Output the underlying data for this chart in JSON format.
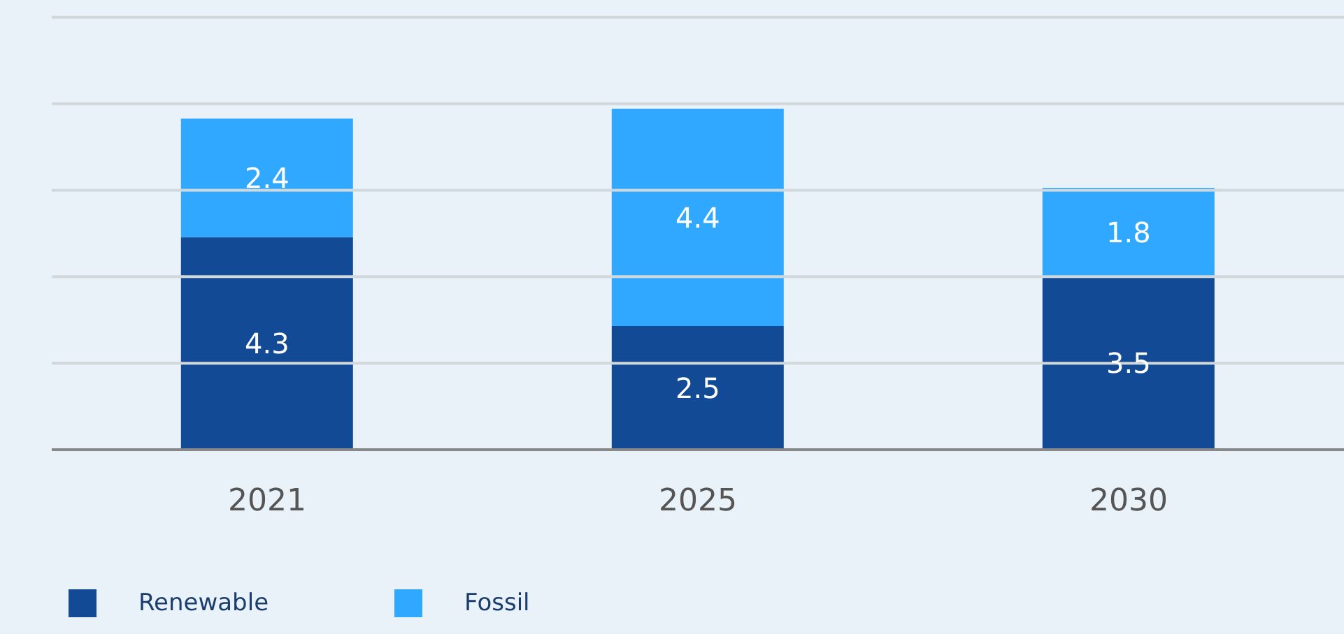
{
  "chart_data": {
    "type": "bar",
    "categories": [
      "2021",
      "2025",
      "2030"
    ],
    "stacked": true,
    "series": [
      {
        "name": "Renewable",
        "color": "#124a96",
        "values": [
          4.3,
          2.5,
          3.5
        ]
      },
      {
        "name": "Fossil",
        "color": "#31a8ff",
        "values": [
          2.4,
          4.4,
          1.8
        ]
      }
    ],
    "data_labels": true,
    "ylim": [
      0,
      9.1
    ],
    "yticks": [
      {
        "value": 0,
        "label": null
      },
      {
        "value": 1.75,
        "label": null
      },
      {
        "value": 3.5,
        "label": null
      },
      {
        "value": 5.25,
        "label": null
      },
      {
        "value": 7,
        "label": null
      },
      {
        "value": 8.75,
        "label": null
      }
    ],
    "tick_labels": "x",
    "grid": "y",
    "legend": "bottom left"
  }
}
